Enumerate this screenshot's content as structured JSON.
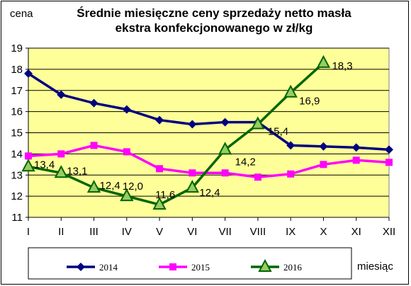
{
  "chart_data": {
    "type": "line",
    "title_line1": "Średnie miesięczne ceny sprzedaży netto masła",
    "title_line2": "ekstra konfekcjonowanego w zł/kg",
    "ylabel": "cena",
    "xlabel": "miesiąc",
    "categories": [
      "I",
      "II",
      "III",
      "IV",
      "V",
      "VI",
      "VII",
      "VIII",
      "IX",
      "X",
      "XI",
      "XII"
    ],
    "ylim": [
      11,
      19
    ],
    "yticks": [
      11,
      12,
      13,
      14,
      15,
      16,
      17,
      18,
      19
    ],
    "grid": "horizontal",
    "plot_background": "#FFFF99",
    "legend_position": "bottom",
    "series": [
      {
        "name": "2014",
        "color": "#000080",
        "marker": "diamond",
        "values": [
          17.8,
          16.8,
          16.4,
          16.1,
          15.6,
          15.4,
          15.5,
          15.5,
          14.4,
          14.35,
          14.3,
          14.2
        ]
      },
      {
        "name": "2015",
        "color": "#FF00FF",
        "marker": "square",
        "values": [
          13.9,
          14.0,
          14.4,
          14.1,
          13.3,
          13.1,
          13.1,
          12.9,
          13.05,
          13.5,
          13.7,
          13.6
        ]
      },
      {
        "name": "2016",
        "color": "#006600",
        "marker": "triangle",
        "values": [
          13.4,
          13.1,
          12.4,
          12.0,
          11.6,
          12.4,
          14.2,
          15.4,
          16.9,
          18.3,
          null,
          null
        ],
        "data_labels": [
          "13,4",
          "13,1",
          "12,4",
          "12,0",
          "11,6",
          "12,4",
          "14,2",
          "15,4",
          "16,9",
          "18,3",
          "",
          ""
        ]
      }
    ]
  }
}
